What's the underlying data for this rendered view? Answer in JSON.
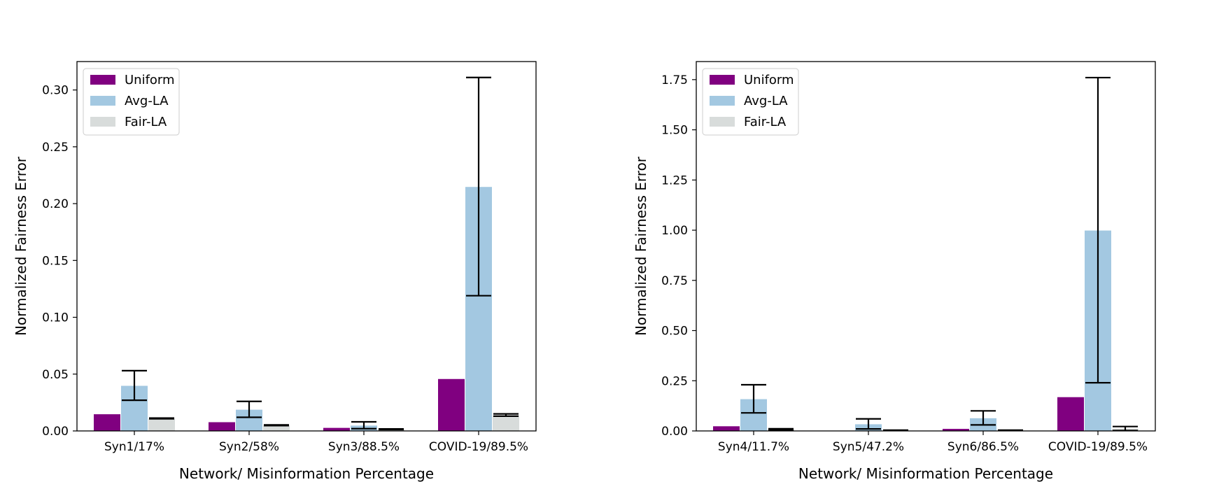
{
  "chart_data": [
    {
      "type": "bar",
      "title": "",
      "xlabel": "Network/ Misinformation Percentage",
      "ylabel": "Normalized Fairness Error",
      "categories": [
        "Syn1/17%",
        "Syn2/58%",
        "Syn3/88.5%",
        "COVID-19/89.5%"
      ],
      "ylim": [
        0,
        0.325
      ],
      "yticks": [
        0.0,
        0.05,
        0.1,
        0.15,
        0.2,
        0.25,
        0.3
      ],
      "ytick_labels": [
        "0.00",
        "0.05",
        "0.10",
        "0.15",
        "0.20",
        "0.25",
        "0.30"
      ],
      "legend_position": "top-left",
      "series": [
        {
          "name": "Uniform",
          "color": "#800080",
          "values": [
            0.015,
            0.008,
            0.003,
            0.046
          ],
          "errors": [
            null,
            null,
            null,
            null
          ]
        },
        {
          "name": "Avg-LA",
          "color": "#a3c8e1",
          "values": [
            0.04,
            0.019,
            0.005,
            0.215
          ],
          "errors": [
            0.013,
            0.007,
            0.003,
            0.096
          ]
        },
        {
          "name": "Fair-LA",
          "color": "#d8dcdb",
          "values": [
            0.011,
            0.005,
            0.0015,
            0.014
          ],
          "errors": [
            0.0003,
            0.0003,
            0.0003,
            0.001
          ]
        }
      ]
    },
    {
      "type": "bar",
      "title": "",
      "xlabel": "Network/ Misinformation Percentage",
      "ylabel": "Normalized Fairness Error",
      "categories": [
        "Syn4/11.7%",
        "Syn5/47.2%",
        "Syn6/86.5%",
        "COVID-19/89.5%"
      ],
      "ylim": [
        0,
        1.84
      ],
      "yticks": [
        0.0,
        0.25,
        0.5,
        0.75,
        1.0,
        1.25,
        1.5,
        1.75
      ],
      "ytick_labels": [
        "0.00",
        "0.25",
        "0.50",
        "0.75",
        "1.00",
        "1.25",
        "1.50",
        "1.75"
      ],
      "legend_position": "top-left",
      "series": [
        {
          "name": "Uniform",
          "color": "#800080",
          "values": [
            0.025,
            0.002,
            0.012,
            0.17
          ],
          "errors": [
            null,
            null,
            null,
            null
          ]
        },
        {
          "name": "Avg-LA",
          "color": "#a3c8e1",
          "values": [
            0.16,
            0.035,
            0.065,
            1.0
          ],
          "errors": [
            0.07,
            0.025,
            0.035,
            0.76
          ]
        },
        {
          "name": "Fair-LA",
          "color": "#d8dcdb",
          "values": [
            0.008,
            0.003,
            0.003,
            0.012
          ],
          "errors": [
            0.003,
            0.001,
            0.001,
            0.01
          ]
        }
      ]
    }
  ]
}
